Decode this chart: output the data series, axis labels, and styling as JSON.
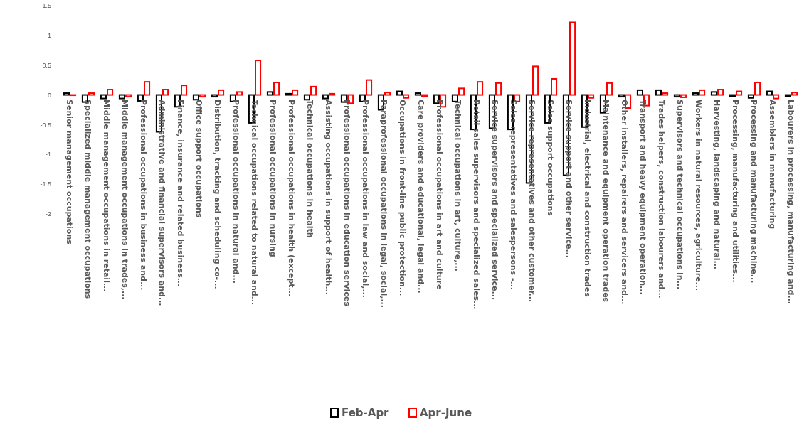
{
  "chart_data": {
    "type": "bar",
    "categories": [
      "Senior management occupations",
      "Specialized middle management occupations",
      "Middle management occupations in retail...",
      "Middle management occupations in trades,...",
      "Professional occupations in business and...",
      "Administrative and financial supervisors and...",
      "Finance, insurance and related business...",
      "Office support occupations",
      "Distribution, tracking and scheduling co-...",
      "Professional occupations in natural and...",
      "Technical occupations related to natural and...",
      "Professional occupations in nursing",
      "Professional occupations in health (except...",
      "Technical occupations in health",
      "Assisting occupations in support of health...",
      "Professional occupations in education services",
      "Professional occupations in law and social,...",
      "Paraprofessional occupations in legal, social,...",
      "Occupations in front-line public protection...",
      "Care providers and educational, legal and...",
      "Professional occupations in art and culture",
      "Technical occupations in art, culture,...",
      "Retail sales supervisors and specialized sales...",
      "Service supervisors and specialized service...",
      "Sales representatives and salespersons -...",
      "Service representatives and other customer...",
      "Sales support occupations",
      "Service support and other service...",
      "Industrial, electrical and construction trades",
      "Maintenance and equipment operation trades",
      "Other installers, repairers and servicers and...",
      "Transport and heavy equipment operation...",
      "Trades helpers, construction labourers and...",
      "Supervisors and technical occupations in...",
      "Workers in natural resources, agriculture...",
      "Harvesting, landscaping and natural...",
      "Processing, manufacturing and utilities...",
      "Processing and manufacturing machine...",
      "Assemblers in manufacturing",
      "Labourers in processing, manufacturing and..."
    ],
    "series": [
      {
        "name": "Feb-Apr",
        "color": "#000000",
        "values": [
          0.03,
          -0.12,
          -0.06,
          -0.06,
          -0.1,
          -0.62,
          -0.2,
          -0.08,
          -0.03,
          -0.11,
          -0.47,
          0.05,
          0.02,
          -0.08,
          -0.06,
          -0.12,
          -0.11,
          -0.25,
          0.06,
          0.03,
          -0.14,
          -0.11,
          -0.58,
          -0.56,
          -0.58,
          -1.48,
          -0.47,
          -1.35,
          -0.54,
          -0.3,
          -0.03,
          0.08,
          0.08,
          -0.03,
          0.03,
          0.05,
          -0.02,
          -0.05,
          0.06,
          -0.02
        ]
      },
      {
        "name": "Apr-June",
        "color": "#ff0000",
        "values": [
          0.0,
          0.03,
          0.09,
          -0.03,
          0.22,
          0.09,
          0.16,
          -0.03,
          0.08,
          0.05,
          0.58,
          0.21,
          0.08,
          0.14,
          0.02,
          -0.14,
          0.25,
          0.04,
          -0.05,
          -0.02,
          -0.2,
          0.11,
          0.22,
          0.2,
          -0.11,
          0.48,
          0.27,
          1.22,
          -0.05,
          0.2,
          -0.22,
          -0.18,
          0.03,
          -0.04,
          0.08,
          0.09,
          0.06,
          0.21,
          -0.06,
          0.04
        ]
      }
    ],
    "ylim": [
      -2,
      1.5
    ],
    "yticks": [
      -2,
      -1.5,
      -1,
      -0.5,
      0,
      0.5,
      1,
      1.5
    ],
    "legend": "bottom",
    "grid": false
  }
}
